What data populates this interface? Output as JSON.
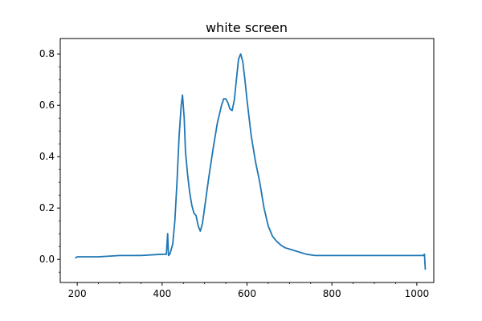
{
  "chart_data": {
    "type": "line",
    "title": "white screen",
    "xlabel": "",
    "ylabel": "",
    "xlim": [
      160,
      1040
    ],
    "ylim": [
      -0.09,
      0.86
    ],
    "x_ticks": [
      200,
      400,
      600,
      800,
      1000
    ],
    "x_tick_labels": [
      "200",
      "400",
      "600",
      "800",
      "1000"
    ],
    "y_ticks": [
      0.0,
      0.2,
      0.4,
      0.6,
      0.8
    ],
    "y_tick_labels": [
      "0.0",
      "0.2",
      "0.4",
      "0.6",
      "0.8"
    ],
    "grid": false,
    "series": [
      {
        "color": "#1f77b4",
        "x": [
          195,
          200,
          250,
          300,
          350,
          400,
          410,
          413,
          415,
          418,
          420,
          425,
          430,
          435,
          440,
          445,
          448,
          452,
          455,
          460,
          465,
          470,
          475,
          480,
          485,
          490,
          495,
          500,
          510,
          520,
          530,
          540,
          545,
          550,
          555,
          560,
          565,
          570,
          575,
          580,
          585,
          590,
          595,
          600,
          610,
          620,
          630,
          640,
          650,
          660,
          670,
          680,
          690,
          700,
          720,
          740,
          760,
          780,
          800,
          850,
          900,
          950,
          1000,
          1015,
          1018,
          1020
        ],
        "y": [
          0.005,
          0.01,
          0.01,
          0.015,
          0.015,
          0.02,
          0.02,
          0.1,
          0.015,
          0.02,
          0.03,
          0.06,
          0.15,
          0.3,
          0.48,
          0.6,
          0.64,
          0.55,
          0.42,
          0.33,
          0.26,
          0.21,
          0.18,
          0.17,
          0.13,
          0.11,
          0.14,
          0.2,
          0.32,
          0.43,
          0.53,
          0.6,
          0.625,
          0.625,
          0.61,
          0.585,
          0.58,
          0.62,
          0.7,
          0.78,
          0.8,
          0.77,
          0.7,
          0.62,
          0.48,
          0.38,
          0.3,
          0.2,
          0.13,
          0.09,
          0.07,
          0.055,
          0.045,
          0.04,
          0.03,
          0.02,
          0.015,
          0.015,
          0.015,
          0.015,
          0.015,
          0.015,
          0.015,
          0.015,
          0.02,
          -0.04
        ]
      }
    ]
  }
}
